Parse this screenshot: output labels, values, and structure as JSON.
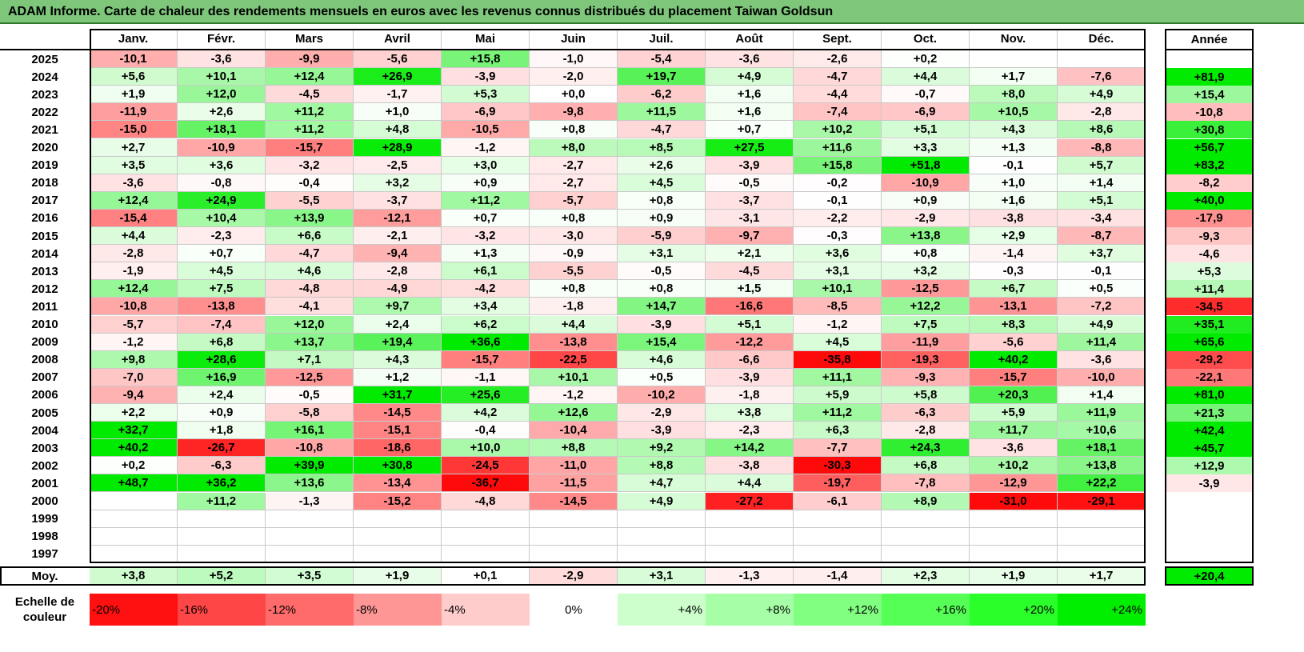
{
  "title": "ADAM Informe. Carte de chaleur des rendements mensuels en euros avec les revenus connus distribués du placement Taiwan Goldsun",
  "chart_data": {
    "type": "heatmap",
    "months": [
      "Janv.",
      "Févr.",
      "Mars",
      "Avril",
      "Mai",
      "Juin",
      "Juil.",
      "Août",
      "Sept.",
      "Oct.",
      "Nov.",
      "Déc."
    ],
    "annual_header": "Année",
    "rows": [
      {
        "year": "2025",
        "values": [
          -10.1,
          -3.6,
          -9.9,
          -5.6,
          15.8,
          -1.0,
          -5.4,
          -3.6,
          -2.6,
          0.2,
          null,
          null
        ],
        "annual": null
      },
      {
        "year": "2024",
        "values": [
          5.6,
          10.1,
          12.4,
          26.9,
          -3.9,
          -2.0,
          19.7,
          4.9,
          -4.7,
          4.4,
          1.7,
          -7.6
        ],
        "annual": 81.9
      },
      {
        "year": "2023",
        "values": [
          1.9,
          12.0,
          -4.5,
          -1.7,
          5.3,
          0.0,
          -6.2,
          1.6,
          -4.4,
          -0.7,
          8.0,
          4.9
        ],
        "annual": 15.4
      },
      {
        "year": "2022",
        "values": [
          -11.9,
          2.6,
          11.2,
          1.0,
          -6.9,
          -9.8,
          11.5,
          1.6,
          -7.4,
          -6.9,
          10.5,
          -2.8
        ],
        "annual": -10.8
      },
      {
        "year": "2021",
        "values": [
          -15.0,
          18.1,
          11.2,
          4.8,
          -10.5,
          0.8,
          -4.7,
          0.7,
          10.2,
          5.1,
          4.3,
          8.6
        ],
        "annual": 30.8
      },
      {
        "year": "2020",
        "values": [
          2.7,
          -10.9,
          -15.7,
          28.9,
          -1.2,
          8.0,
          8.5,
          27.5,
          11.6,
          3.3,
          1.3,
          -8.8
        ],
        "annual": 56.7
      },
      {
        "year": "2019",
        "values": [
          3.5,
          3.6,
          -3.2,
          -2.5,
          3.0,
          -2.7,
          2.6,
          -3.9,
          15.8,
          51.8,
          -0.1,
          5.7
        ],
        "annual": 83.2
      },
      {
        "year": "2018",
        "values": [
          -3.6,
          -0.8,
          -0.4,
          3.2,
          0.9,
          -2.7,
          4.5,
          -0.5,
          -0.2,
          -10.9,
          1.0,
          1.4
        ],
        "annual": -8.2
      },
      {
        "year": "2017",
        "values": [
          12.4,
          24.9,
          -5.5,
          -3.7,
          11.2,
          -5.7,
          0.8,
          -3.7,
          -0.1,
          0.9,
          1.6,
          5.1
        ],
        "annual": 40.0
      },
      {
        "year": "2016",
        "values": [
          -15.4,
          10.4,
          13.9,
          -12.1,
          0.7,
          0.8,
          0.9,
          -3.1,
          -2.2,
          -2.9,
          -3.8,
          -3.4
        ],
        "annual": -17.9
      },
      {
        "year": "2015",
        "values": [
          4.4,
          -2.3,
          6.6,
          -2.1,
          -3.2,
          -3.0,
          -5.9,
          -9.7,
          -0.3,
          13.8,
          2.9,
          -8.7
        ],
        "annual": -9.3
      },
      {
        "year": "2014",
        "values": [
          -2.8,
          0.7,
          -4.7,
          -9.4,
          1.3,
          -0.9,
          3.1,
          2.1,
          3.6,
          0.8,
          -1.4,
          3.7
        ],
        "annual": -4.6
      },
      {
        "year": "2013",
        "values": [
          -1.9,
          4.5,
          4.6,
          -2.8,
          6.1,
          -5.5,
          -0.5,
          -4.5,
          3.1,
          3.2,
          -0.3,
          -0.1
        ],
        "annual": 5.3
      },
      {
        "year": "2012",
        "values": [
          12.4,
          7.5,
          -4.8,
          -4.9,
          -4.2,
          0.8,
          0.8,
          1.5,
          10.1,
          -12.5,
          6.7,
          0.5
        ],
        "annual": 11.4
      },
      {
        "year": "2011",
        "values": [
          -10.8,
          -13.8,
          -4.1,
          9.7,
          3.4,
          -1.8,
          14.7,
          -16.6,
          -8.5,
          12.2,
          -13.1,
          -7.2
        ],
        "annual": -34.5
      },
      {
        "year": "2010",
        "values": [
          -5.7,
          -7.4,
          12.0,
          2.4,
          6.2,
          4.4,
          -3.9,
          5.1,
          -1.2,
          7.5,
          8.3,
          4.9
        ],
        "annual": 35.1
      },
      {
        "year": "2009",
        "values": [
          -1.2,
          6.8,
          13.7,
          19.4,
          36.6,
          -13.8,
          15.4,
          -12.2,
          4.5,
          -11.9,
          -5.6,
          11.4
        ],
        "annual": 65.6
      },
      {
        "year": "2008",
        "values": [
          9.8,
          28.6,
          7.1,
          4.3,
          -15.7,
          -22.5,
          4.6,
          -6.6,
          -35.8,
          -19.3,
          40.2,
          -3.6
        ],
        "annual": -29.2
      },
      {
        "year": "2007",
        "values": [
          -7.0,
          16.9,
          -12.5,
          1.2,
          -1.1,
          10.1,
          0.5,
          -3.9,
          11.1,
          -9.3,
          -15.7,
          -10.0
        ],
        "annual": -22.1
      },
      {
        "year": "2006",
        "values": [
          -9.4,
          2.4,
          -0.5,
          31.7,
          25.6,
          -1.2,
          -10.2,
          -1.8,
          5.9,
          5.8,
          20.3,
          1.4
        ],
        "annual": 81.0
      },
      {
        "year": "2005",
        "values": [
          2.2,
          0.9,
          -5.8,
          -14.5,
          4.2,
          12.6,
          -2.9,
          3.8,
          11.2,
          -6.3,
          5.9,
          11.9
        ],
        "annual": 21.3
      },
      {
        "year": "2004",
        "values": [
          32.7,
          1.8,
          16.1,
          -15.1,
          -0.4,
          -10.4,
          -3.9,
          -2.3,
          6.3,
          -2.8,
          11.7,
          10.6
        ],
        "annual": 42.4
      },
      {
        "year": "2003",
        "values": [
          40.2,
          -26.7,
          -10.8,
          -18.6,
          10.0,
          8.8,
          9.2,
          14.2,
          -7.7,
          24.3,
          -3.6,
          18.1
        ],
        "annual": 45.7
      },
      {
        "year": "2002",
        "values": [
          0.2,
          -6.3,
          39.9,
          30.8,
          -24.5,
          -11.0,
          8.8,
          -3.8,
          -30.3,
          6.8,
          10.2,
          13.8
        ],
        "annual": 12.9
      },
      {
        "year": "2001",
        "values": [
          48.7,
          36.2,
          13.6,
          -13.4,
          -36.7,
          -11.5,
          4.7,
          4.4,
          -19.7,
          -7.8,
          -12.9,
          22.2
        ],
        "annual": -3.9
      },
      {
        "year": "2000",
        "values": [
          null,
          11.2,
          -1.3,
          -15.2,
          -4.8,
          -14.5,
          4.9,
          -27.2,
          -6.1,
          8.9,
          -31.0,
          -29.1
        ],
        "annual": null
      },
      {
        "year": "1999",
        "values": [
          null,
          null,
          null,
          null,
          null,
          null,
          null,
          null,
          null,
          null,
          null,
          null
        ],
        "annual": null
      },
      {
        "year": "1998",
        "values": [
          null,
          null,
          null,
          null,
          null,
          null,
          null,
          null,
          null,
          null,
          null,
          null
        ],
        "annual": null
      },
      {
        "year": "1997",
        "values": [
          null,
          null,
          null,
          null,
          null,
          null,
          null,
          null,
          null,
          null,
          null,
          null
        ],
        "annual": null
      }
    ],
    "average": {
      "label": "Moy.",
      "values": [
        3.8,
        5.2,
        3.5,
        1.9,
        0.1,
        -2.9,
        3.1,
        -1.3,
        -1.4,
        2.3,
        1.9,
        1.7
      ],
      "annual": 20.4
    },
    "color_scale": {
      "label": "Echelle de couleur",
      "steps": [
        "-20%",
        "-16%",
        "-12%",
        "-8%",
        "-4%",
        "0%",
        "+4%",
        "+8%",
        "+12%",
        "+16%",
        "+20%",
        "+24%"
      ],
      "colors": [
        "#ff1010",
        "#ff4646",
        "#ff6a6a",
        "#ff9696",
        "#ffcccc",
        "#ffffff",
        "#ccffcc",
        "#a6ffa6",
        "#80ff80",
        "#55ff55",
        "#2aff2a",
        "#00ee00"
      ]
    }
  }
}
